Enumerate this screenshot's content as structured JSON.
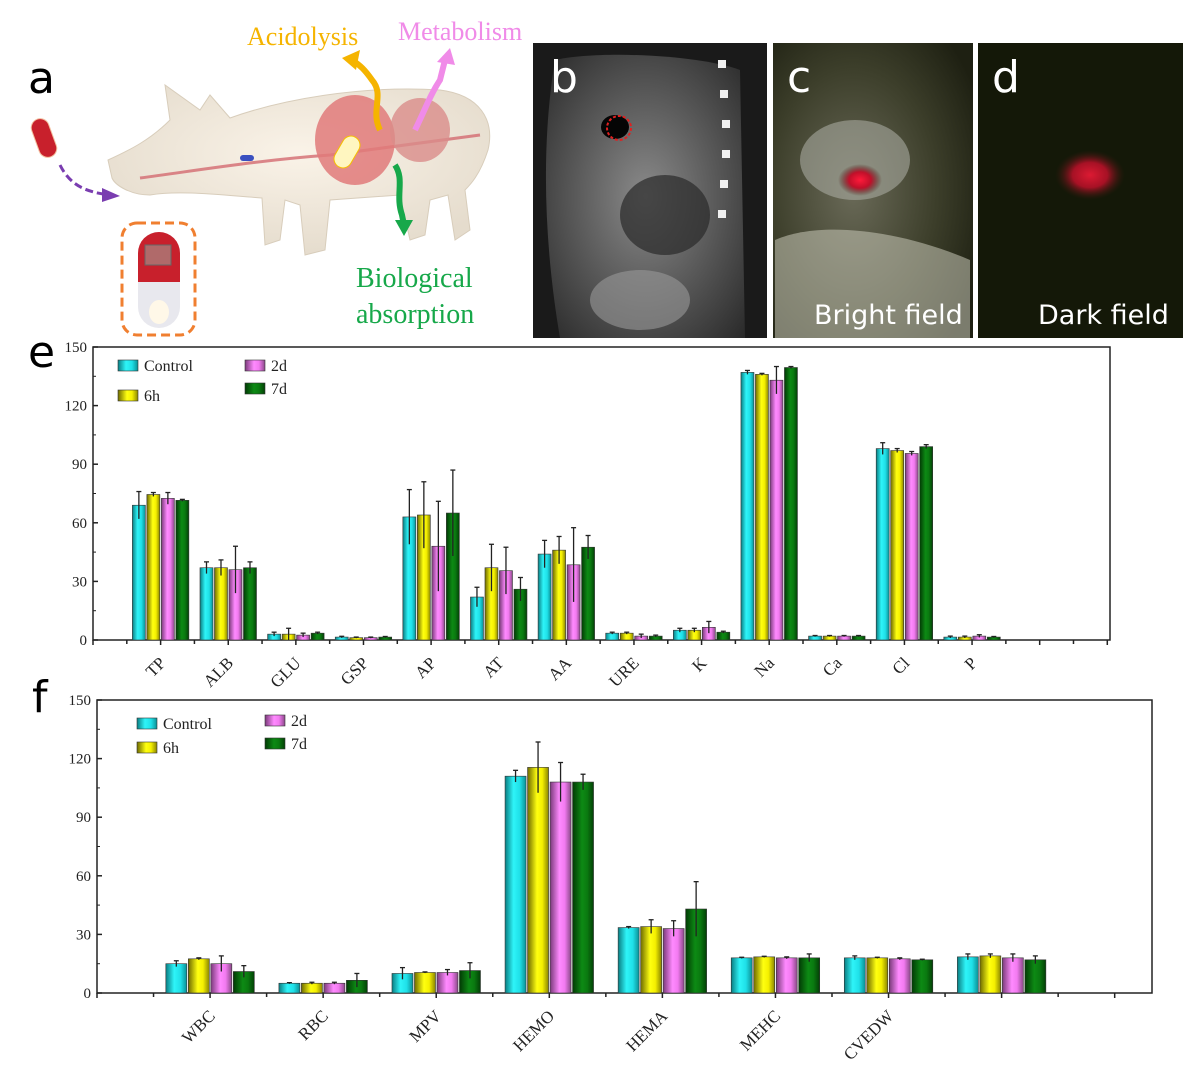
{
  "panels": {
    "a": {
      "letter": "a",
      "acidolysis": "Acidolysis",
      "metabolism": "Metabolism",
      "bio1": "Biological",
      "bio2": "absorption"
    },
    "b": {
      "letter": "b"
    },
    "c": {
      "letter": "c",
      "caption": "Bright field"
    },
    "d": {
      "letter": "d",
      "caption": "Dark field"
    },
    "e": {
      "letter": "e"
    },
    "f": {
      "letter": "f"
    }
  },
  "colors": {
    "acidolysis": "#f5b400",
    "metabolism": "#f08be8",
    "biological": "#17a84a",
    "arrow": "#7a3db0",
    "capsule_box": "#f07f30",
    "Control": "#1fe0e8",
    "6h": "#f5f500",
    "2d": "#f27af0",
    "7d": "#0a7a10"
  },
  "chart_data": [
    {
      "id": "e",
      "type": "bar",
      "ylim": [
        0,
        150
      ],
      "yticks": [
        "0",
        "30",
        "60",
        "90",
        "120",
        "150"
      ],
      "grid": false,
      "legend_placement": "top-left",
      "categories": [
        "TP",
        "ALB",
        "GLU",
        "GSP",
        "AP",
        "AT",
        "AA",
        "URE",
        "K",
        "Na",
        "Ca",
        "Cl",
        "P"
      ],
      "series": [
        {
          "name": "Control",
          "values": [
            69,
            37,
            3,
            1.5,
            63,
            22,
            44,
            3.5,
            5,
            137,
            2,
            98,
            1.5
          ],
          "errors": [
            7,
            3,
            1,
            0.4,
            14,
            5,
            7,
            0.5,
            1,
            1,
            0.3,
            3,
            0.5
          ]
        },
        {
          "name": "6h",
          "values": [
            74.5,
            37,
            3,
            1.2,
            64,
            37,
            46,
            3.5,
            5,
            136,
            2,
            97,
            1.5
          ],
          "errors": [
            1,
            4,
            3,
            0.3,
            17,
            12,
            7,
            0.5,
            1,
            0.5,
            0.3,
            1,
            0.5
          ]
        },
        {
          "name": "2d",
          "values": [
            72.5,
            36,
            2.5,
            1.2,
            48,
            35.5,
            38.5,
            2,
            6.5,
            133,
            2,
            95.5,
            2
          ],
          "errors": [
            3,
            12,
            1,
            0.3,
            23,
            12,
            19,
            1,
            3,
            7,
            0.3,
            1,
            0.7
          ]
        },
        {
          "name": "7d",
          "values": [
            71.5,
            37,
            3.5,
            1.5,
            65,
            26,
            47.5,
            2,
            4,
            139.5,
            2,
            99,
            1.5
          ],
          "errors": [
            0.5,
            3,
            0.5,
            0.3,
            22,
            6,
            6,
            0.5,
            0.5,
            0.5,
            0.3,
            1,
            0.3
          ]
        }
      ]
    },
    {
      "id": "f",
      "type": "bar",
      "ylim": [
        0,
        150
      ],
      "yticks": [
        "0",
        "30",
        "60",
        "90",
        "120",
        "150"
      ],
      "grid": false,
      "legend_placement": "top-left",
      "categories": [
        "WBC",
        "RBC",
        "MPV",
        "HEMO",
        "HEMA",
        "MEHC",
        "CVEDW",
        ""
      ],
      "series": [
        {
          "name": "Control",
          "values": [
            15,
            5,
            10,
            111,
            33.5,
            18,
            18,
            18.5
          ],
          "errors": [
            1.5,
            0.3,
            3,
            3,
            0.5,
            0.3,
            1,
            1.5
          ]
        },
        {
          "name": "6h",
          "values": [
            17.5,
            5,
            10.5,
            115.5,
            34,
            18.5,
            18,
            19
          ],
          "errors": [
            0.5,
            0.5,
            0.3,
            13,
            3.5,
            0.3,
            0.3,
            1
          ]
        },
        {
          "name": "2d",
          "values": [
            15,
            5,
            10.5,
            108,
            33,
            18,
            17.5,
            18
          ],
          "errors": [
            4,
            0.5,
            1.5,
            10,
            4,
            0.5,
            0.5,
            2
          ]
        },
        {
          "name": "7d",
          "values": [
            11,
            6.5,
            11.5,
            108,
            43,
            18,
            17,
            17
          ],
          "errors": [
            3,
            3.5,
            4,
            4,
            14,
            2,
            0.3,
            2
          ]
        }
      ]
    }
  ]
}
